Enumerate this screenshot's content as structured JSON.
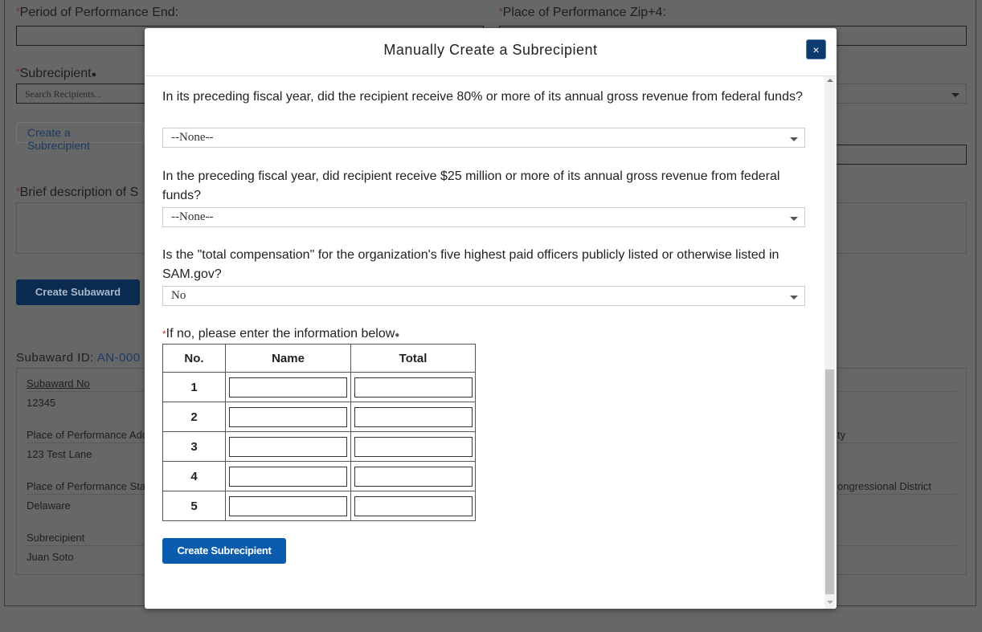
{
  "background": {
    "period_end_label": "Period of Performance End:",
    "zip_label": "Place of Performance Zip+4:",
    "subrecipient_label": "Subrecipient",
    "search_placeholder": "Search Recipients...",
    "create_subrecipient_link": "Create a Subrecipient",
    "brief_description_label": "Brief description of S",
    "create_subaward_button": "Create Subaward",
    "subaward_id_label": "Subaward ID:",
    "subaward_id_value": "AN-000",
    "details": [
      {
        "label": "Subaward No",
        "value": "12345"
      },
      {
        "label": "Place of Performance Add",
        "value": "123 Test Lane"
      },
      {
        "label": "Place of Performance Stat",
        "value": "Delaware"
      },
      {
        "label": "Subrecipient",
        "value": "Juan Soto"
      }
    ],
    "right_labels": [
      "ty",
      "ongressional District"
    ]
  },
  "modal": {
    "title": "Manually Create a Subrecipient",
    "close_label": "×",
    "questions": [
      {
        "text": "In its preceding fiscal year, did the recipient receive 80% or more of its annual gross revenue from federal funds?",
        "value": "--None--"
      },
      {
        "text": "In the preceding fiscal year, did recipient receive $25 million or more of its annual gross revenue from federal funds?",
        "value": "--None--"
      },
      {
        "text": "Is the \"total compensation\" for the organization's five highest paid officers publicly listed or otherwise listed in SAM.gov?",
        "value": "No"
      }
    ],
    "officers_label": "If no, please enter the information below",
    "table": {
      "headers": [
        "No.",
        "Name",
        "Total"
      ],
      "rows": [
        "1",
        "2",
        "3",
        "4",
        "5"
      ]
    },
    "submit_button": "Create Subrecipient"
  }
}
